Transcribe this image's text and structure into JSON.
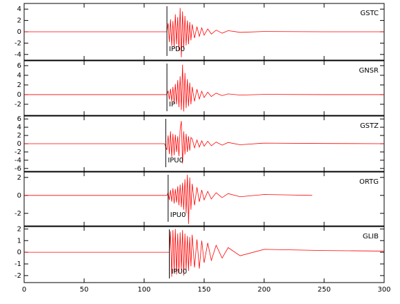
{
  "chart_data": [
    {
      "type": "line",
      "title": "GSTC",
      "annotation": "IPD0",
      "pick_x": 119,
      "color": "#ff0000",
      "xlim": [
        0,
        300
      ],
      "xticks": [
        0,
        50,
        100,
        150,
        200,
        250,
        300
      ],
      "ylim": [
        -5,
        5
      ],
      "yticks": [
        4,
        2,
        0,
        -2,
        -4
      ],
      "x": [
        0,
        50,
        100,
        117,
        119,
        120,
        121,
        122,
        123,
        124,
        125,
        126,
        127,
        128,
        129,
        130,
        131,
        132,
        133,
        134,
        135,
        136,
        137,
        138,
        139,
        140,
        142,
        144,
        146,
        148,
        150,
        153,
        156,
        160,
        165,
        170,
        180,
        200,
        250,
        300
      ],
      "values": [
        0,
        0,
        0,
        0,
        0,
        1.5,
        -1.8,
        2.2,
        -2.5,
        1.9,
        -2.8,
        3.1,
        -2.2,
        2.6,
        -3.4,
        4.2,
        -4.5,
        3.6,
        -3.0,
        2.8,
        -2.4,
        2.0,
        -2.2,
        1.7,
        -1.5,
        1.3,
        -1.1,
        0.9,
        -0.8,
        0.7,
        -0.6,
        0.5,
        -0.4,
        0.3,
        -0.25,
        0.2,
        -0.1,
        0.05,
        0,
        0
      ]
    },
    {
      "type": "line",
      "title": "GNSR",
      "annotation": "IP",
      "pick_x": 119,
      "color": "#ff0000",
      "xlim": [
        0,
        300
      ],
      "xticks": [
        0,
        50,
        100,
        150,
        200,
        250,
        300
      ],
      "ylim": [
        -4.3,
        7
      ],
      "yticks": [
        6,
        4,
        2,
        0,
        -2
      ],
      "x": [
        0,
        50,
        100,
        117,
        119,
        120,
        121,
        122,
        123,
        124,
        125,
        126,
        127,
        128,
        129,
        130,
        131,
        132,
        133,
        134,
        135,
        136,
        137,
        138,
        139,
        140,
        142,
        144,
        146,
        148,
        150,
        153,
        156,
        160,
        165,
        170,
        180,
        200,
        250,
        300
      ],
      "values": [
        0,
        0,
        0,
        0,
        0,
        0.8,
        -1.0,
        1.2,
        -1.4,
        1.6,
        -1.8,
        2.2,
        -2.0,
        3.0,
        -2.6,
        3.8,
        -3.2,
        6.2,
        -3.5,
        4.5,
        -2.8,
        3.2,
        -2.4,
        2.5,
        -2.0,
        1.6,
        -1.4,
        1.1,
        -0.9,
        0.7,
        -0.6,
        0.5,
        -0.4,
        0.3,
        -0.2,
        0.15,
        -0.1,
        0.05,
        0,
        0
      ]
    },
    {
      "type": "line",
      "title": "GSTZ",
      "annotation": "IPU0",
      "pick_x": 118,
      "color": "#ff0000",
      "xlim": [
        0,
        300
      ],
      "xticks": [
        0,
        50,
        100,
        150,
        200,
        250,
        300
      ],
      "ylim": [
        -6.7,
        6.7
      ],
      "yticks": [
        6,
        4,
        2,
        0,
        -2,
        -4,
        -6
      ],
      "x": [
        0,
        50,
        100,
        117,
        119,
        120,
        121,
        122,
        123,
        124,
        125,
        126,
        127,
        128,
        129,
        130,
        131,
        132,
        133,
        134,
        135,
        136,
        137,
        138,
        139,
        140,
        142,
        144,
        146,
        148,
        150,
        153,
        156,
        160,
        165,
        170,
        180,
        200,
        250,
        300
      ],
      "values": [
        0,
        0,
        0,
        0,
        -1.5,
        2.0,
        -2.5,
        3.0,
        -3.2,
        2.4,
        -2.8,
        2.2,
        -2.0,
        1.8,
        -3.0,
        3.5,
        5.5,
        -4.8,
        3.0,
        -2.6,
        2.4,
        -2.0,
        1.8,
        -1.7,
        1.5,
        1.2,
        -1.0,
        0.9,
        -0.8,
        0.7,
        -0.6,
        0.6,
        -0.5,
        0.4,
        -0.35,
        0.3,
        -0.25,
        0.15,
        0.05,
        0
      ]
    },
    {
      "type": "line",
      "title": "ORTG",
      "annotation": "IPU0",
      "pick_x": 120,
      "color": "#ff0000",
      "xlim": [
        0,
        300
      ],
      "xticks": [
        0,
        50,
        100,
        150,
        200,
        250,
        300
      ],
      "ylim": [
        -3.4,
        2.6
      ],
      "yticks": [
        2,
        0,
        -2
      ],
      "x": [
        0,
        50,
        100,
        117,
        119,
        120,
        121,
        122,
        123,
        124,
        125,
        126,
        127,
        128,
        129,
        130,
        131,
        132,
        133,
        134,
        135,
        136,
        137,
        138,
        139,
        140,
        142,
        144,
        146,
        148,
        150,
        153,
        156,
        160,
        165,
        170,
        180,
        200,
        220,
        240
      ],
      "values": [
        0,
        0,
        0,
        0,
        0,
        0.3,
        -0.5,
        0.6,
        -0.7,
        0.8,
        -0.9,
        0.7,
        -0.8,
        1.0,
        -1.1,
        1.2,
        -1.3,
        1.4,
        -1.6,
        1.8,
        -2.0,
        2.3,
        -3.2,
        2.0,
        -1.6,
        1.3,
        -1.1,
        0.9,
        -0.7,
        0.6,
        -0.5,
        0.45,
        -0.4,
        0.3,
        -0.25,
        0.2,
        -0.15,
        0.1,
        0.05,
        0
      ]
    },
    {
      "type": "line",
      "title": "GLIB",
      "annotation": "IPU0",
      "pick_x": 121,
      "color": "#ff0000",
      "xlim": [
        0,
        300
      ],
      "xticks": [
        0,
        50,
        100,
        150,
        200,
        250,
        300
      ],
      "ylim": [
        -2.6,
        2.2
      ],
      "yticks": [
        2,
        1,
        0,
        -1,
        -2
      ],
      "x": [
        0,
        50,
        100,
        117,
        119,
        120,
        121,
        122,
        123,
        124,
        125,
        126,
        127,
        128,
        129,
        130,
        131,
        132,
        133,
        134,
        135,
        136,
        137,
        138,
        139,
        140,
        142,
        144,
        146,
        148,
        150,
        153,
        156,
        160,
        165,
        170,
        180,
        200,
        250,
        300
      ],
      "values": [
        0,
        0,
        0,
        0,
        0,
        0,
        0,
        1.8,
        -2.1,
        1.9,
        -1.7,
        2.0,
        -1.9,
        1.6,
        -1.8,
        1.7,
        -1.5,
        1.9,
        -2.0,
        1.6,
        -1.5,
        1.4,
        -1.6,
        1.3,
        -1.2,
        1.5,
        -1.3,
        1.1,
        -1.4,
        1.0,
        -0.9,
        0.8,
        -0.7,
        0.6,
        -0.5,
        0.4,
        -0.3,
        0.25,
        0.15,
        0.1
      ]
    }
  ]
}
